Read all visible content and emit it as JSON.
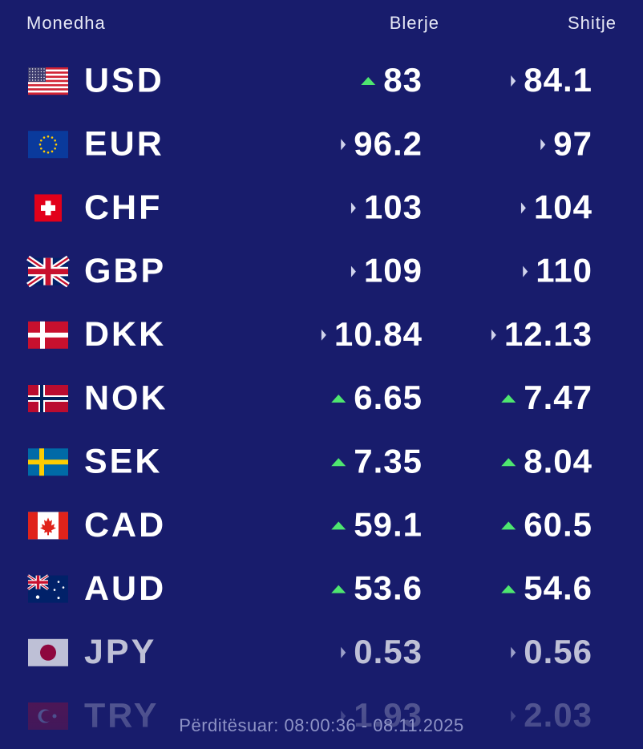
{
  "header": {
    "currency": "Monedha",
    "buy": "Blerje",
    "sell": "Shitje"
  },
  "rows": [
    {
      "code": "USD",
      "buy": "83",
      "buy_trend": "up",
      "sell": "84.1",
      "sell_trend": "flat"
    },
    {
      "code": "EUR",
      "buy": "96.2",
      "buy_trend": "flat",
      "sell": "97",
      "sell_trend": "flat"
    },
    {
      "code": "CHF",
      "buy": "103",
      "buy_trend": "flat",
      "sell": "104",
      "sell_trend": "flat"
    },
    {
      "code": "GBP",
      "buy": "109",
      "buy_trend": "flat",
      "sell": "110",
      "sell_trend": "flat"
    },
    {
      "code": "DKK",
      "buy": "10.84",
      "buy_trend": "flat",
      "sell": "12.13",
      "sell_trend": "flat"
    },
    {
      "code": "NOK",
      "buy": "6.65",
      "buy_trend": "up",
      "sell": "7.47",
      "sell_trend": "up"
    },
    {
      "code": "SEK",
      "buy": "7.35",
      "buy_trend": "up",
      "sell": "8.04",
      "sell_trend": "up"
    },
    {
      "code": "CAD",
      "buy": "59.1",
      "buy_trend": "up",
      "sell": "60.5",
      "sell_trend": "up"
    },
    {
      "code": "AUD",
      "buy": "53.6",
      "buy_trend": "up",
      "sell": "54.6",
      "sell_trend": "up"
    },
    {
      "code": "JPY",
      "buy": "0.53",
      "buy_trend": "flat",
      "sell": "0.56",
      "sell_trend": "flat"
    },
    {
      "code": "TRY",
      "buy": "1.93",
      "buy_trend": "flat",
      "sell": "2.03",
      "sell_trend": "flat"
    }
  ],
  "footer": "Përditësuar: 08:00:36 - 08.11.2025"
}
